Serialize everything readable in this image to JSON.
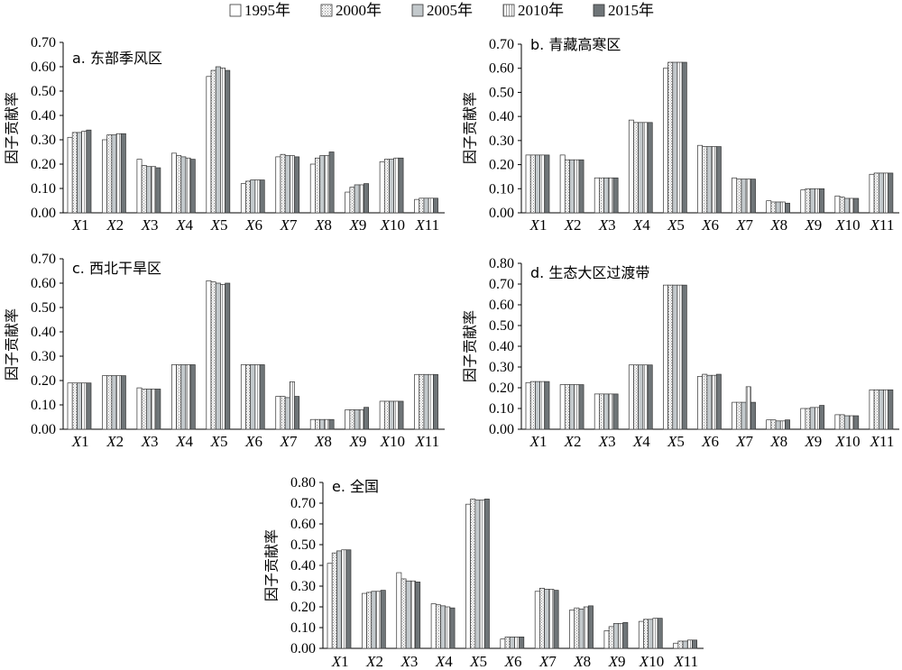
{
  "legend": [
    {
      "label": "1995年",
      "pattern": "white"
    },
    {
      "label": "2000年",
      "pattern": "dots"
    },
    {
      "label": "2005年",
      "pattern": "lightgray"
    },
    {
      "label": "2010年",
      "pattern": "vlines"
    },
    {
      "label": "2015年",
      "pattern": "darkgray"
    }
  ],
  "colors": {
    "axis": "#000000",
    "bar_stroke": "#333333",
    "light_gray": "#c3c9cc",
    "dark_gray": "#6f7578"
  },
  "chart_data": [
    {
      "type": "bar",
      "title": "a. 东部季风区",
      "ylabel": "因子贡献率",
      "ylim": [
        0,
        0.7
      ],
      "yticks": [
        "0.00",
        "0.10",
        "0.20",
        "0.30",
        "0.40",
        "0.50",
        "0.60",
        "0.70"
      ],
      "categories": [
        "X1",
        "X2",
        "X3",
        "X4",
        "X5",
        "X6",
        "X7",
        "X8",
        "X9",
        "X10",
        "X11"
      ],
      "series": [
        {
          "name": "1995年",
          "values": [
            0.31,
            0.3,
            0.22,
            0.245,
            0.56,
            0.12,
            0.23,
            0.2,
            0.085,
            0.21,
            0.055
          ]
        },
        {
          "name": "2000年",
          "values": [
            0.33,
            0.32,
            0.195,
            0.235,
            0.585,
            0.13,
            0.24,
            0.225,
            0.105,
            0.22,
            0.06
          ]
        },
        {
          "name": "2005年",
          "values": [
            0.33,
            0.32,
            0.19,
            0.23,
            0.6,
            0.135,
            0.235,
            0.235,
            0.115,
            0.22,
            0.06
          ]
        },
        {
          "name": "2010年",
          "values": [
            0.335,
            0.325,
            0.19,
            0.225,
            0.595,
            0.135,
            0.235,
            0.235,
            0.115,
            0.225,
            0.06
          ]
        },
        {
          "name": "2015年",
          "values": [
            0.34,
            0.325,
            0.185,
            0.22,
            0.585,
            0.135,
            0.23,
            0.25,
            0.12,
            0.225,
            0.06
          ]
        }
      ]
    },
    {
      "type": "bar",
      "title": "b. 青藏高寒区",
      "ylabel": "因子贡献率",
      "ylim": [
        0,
        0.7
      ],
      "yticks": [
        "0.00",
        "0.10",
        "0.20",
        "0.30",
        "0.40",
        "0.50",
        "0.60",
        "0.70"
      ],
      "categories": [
        "X1",
        "X2",
        "X3",
        "X4",
        "X5",
        "X6",
        "X7",
        "X8",
        "X9",
        "X10",
        "X11"
      ],
      "series": [
        {
          "name": "1995年",
          "values": [
            0.24,
            0.24,
            0.145,
            0.385,
            0.6,
            0.28,
            0.145,
            0.05,
            0.095,
            0.07,
            0.16
          ]
        },
        {
          "name": "2000年",
          "values": [
            0.24,
            0.22,
            0.145,
            0.375,
            0.625,
            0.275,
            0.14,
            0.045,
            0.1,
            0.065,
            0.165
          ]
        },
        {
          "name": "2005年",
          "values": [
            0.24,
            0.22,
            0.145,
            0.375,
            0.625,
            0.275,
            0.14,
            0.045,
            0.1,
            0.06,
            0.165
          ]
        },
        {
          "name": "2010年",
          "values": [
            0.24,
            0.22,
            0.145,
            0.375,
            0.625,
            0.275,
            0.14,
            0.045,
            0.1,
            0.06,
            0.165
          ]
        },
        {
          "name": "2015年",
          "values": [
            0.24,
            0.22,
            0.145,
            0.375,
            0.625,
            0.275,
            0.14,
            0.04,
            0.1,
            0.06,
            0.165
          ]
        }
      ]
    },
    {
      "type": "bar",
      "title": "c. 西北干旱区",
      "ylabel": "因子贡献率",
      "ylim": [
        0,
        0.7
      ],
      "yticks": [
        "0.00",
        "0.10",
        "0.20",
        "0.30",
        "0.40",
        "0.50",
        "0.60",
        "0.70"
      ],
      "categories": [
        "X1",
        "X2",
        "X3",
        "X4",
        "X5",
        "X6",
        "X7",
        "X8",
        "X9",
        "X10",
        "X11"
      ],
      "series": [
        {
          "name": "1995年",
          "values": [
            0.19,
            0.22,
            0.17,
            0.265,
            0.61,
            0.265,
            0.135,
            0.04,
            0.08,
            0.115,
            0.225
          ]
        },
        {
          "name": "2000年",
          "values": [
            0.19,
            0.22,
            0.165,
            0.265,
            0.605,
            0.265,
            0.135,
            0.04,
            0.08,
            0.115,
            0.225
          ]
        },
        {
          "name": "2005年",
          "values": [
            0.19,
            0.22,
            0.165,
            0.265,
            0.6,
            0.265,
            0.13,
            0.04,
            0.08,
            0.115,
            0.225
          ]
        },
        {
          "name": "2010年",
          "values": [
            0.19,
            0.22,
            0.165,
            0.265,
            0.595,
            0.265,
            0.195,
            0.04,
            0.08,
            0.115,
            0.225
          ]
        },
        {
          "name": "2015年",
          "values": [
            0.19,
            0.22,
            0.165,
            0.265,
            0.6,
            0.265,
            0.135,
            0.04,
            0.09,
            0.115,
            0.225
          ]
        }
      ]
    },
    {
      "type": "bar",
      "title": "d. 生态大区过渡带",
      "ylabel": "因子贡献率",
      "ylim": [
        0,
        0.8
      ],
      "yticks": [
        "0.00",
        "0.10",
        "0.20",
        "0.30",
        "0.40",
        "0.50",
        "0.60",
        "0.70",
        "0.80"
      ],
      "categories": [
        "X1",
        "X2",
        "X3",
        "X4",
        "X5",
        "X6",
        "X7",
        "X8",
        "X9",
        "X10",
        "X11"
      ],
      "series": [
        {
          "name": "1995年",
          "values": [
            0.225,
            0.215,
            0.17,
            0.31,
            0.695,
            0.255,
            0.13,
            0.045,
            0.1,
            0.07,
            0.19
          ]
        },
        {
          "name": "2000年",
          "values": [
            0.23,
            0.215,
            0.17,
            0.31,
            0.695,
            0.265,
            0.13,
            0.045,
            0.1,
            0.07,
            0.19
          ]
        },
        {
          "name": "2005年",
          "values": [
            0.23,
            0.215,
            0.17,
            0.31,
            0.695,
            0.26,
            0.13,
            0.04,
            0.105,
            0.065,
            0.19
          ]
        },
        {
          "name": "2010年",
          "values": [
            0.23,
            0.215,
            0.17,
            0.31,
            0.695,
            0.26,
            0.205,
            0.04,
            0.105,
            0.065,
            0.19
          ]
        },
        {
          "name": "2015年",
          "values": [
            0.23,
            0.215,
            0.17,
            0.31,
            0.695,
            0.265,
            0.13,
            0.045,
            0.115,
            0.065,
            0.19
          ]
        }
      ]
    },
    {
      "type": "bar",
      "title": "e. 全国",
      "ylabel": "因子贡献率",
      "ylim": [
        0,
        0.8
      ],
      "yticks": [
        "0.00",
        "0.10",
        "0.20",
        "0.30",
        "0.40",
        "0.50",
        "0.60",
        "0.70",
        "0.80"
      ],
      "categories": [
        "X1",
        "X2",
        "X3",
        "X4",
        "X5",
        "X6",
        "X7",
        "X8",
        "X9",
        "X10",
        "X11"
      ],
      "series": [
        {
          "name": "1995年",
          "values": [
            0.41,
            0.265,
            0.365,
            0.215,
            0.695,
            0.045,
            0.275,
            0.185,
            0.085,
            0.13,
            0.025
          ]
        },
        {
          "name": "2000年",
          "values": [
            0.46,
            0.27,
            0.335,
            0.21,
            0.72,
            0.055,
            0.29,
            0.195,
            0.105,
            0.14,
            0.035
          ]
        },
        {
          "name": "2005年",
          "values": [
            0.47,
            0.275,
            0.325,
            0.205,
            0.715,
            0.055,
            0.285,
            0.19,
            0.12,
            0.14,
            0.035
          ]
        },
        {
          "name": "2010年",
          "values": [
            0.475,
            0.275,
            0.325,
            0.2,
            0.715,
            0.055,
            0.285,
            0.2,
            0.12,
            0.145,
            0.04
          ]
        },
        {
          "name": "2015年",
          "values": [
            0.475,
            0.28,
            0.32,
            0.195,
            0.72,
            0.055,
            0.28,
            0.205,
            0.125,
            0.145,
            0.04
          ]
        }
      ]
    }
  ]
}
